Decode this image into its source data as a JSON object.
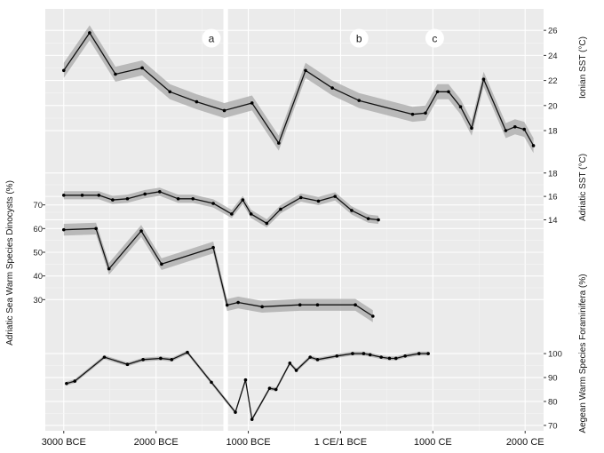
{
  "chart_data": {
    "type": "line",
    "title": "",
    "x_axis": {
      "label": "",
      "range": [
        -3200,
        2200
      ],
      "ticks": [
        {
          "value": -3000,
          "label": "3000 BCE"
        },
        {
          "value": -2000,
          "label": "2000 BCE"
        },
        {
          "value": -1000,
          "label": "1000 BCE"
        },
        {
          "value": 0,
          "label": "1 CE/1 BCE"
        },
        {
          "value": 1000,
          "label": "1000 CE"
        },
        {
          "value": 2000,
          "label": "2000 CE"
        }
      ]
    },
    "axes": {
      "ionian": {
        "label": "Ionian SST (°C)",
        "side": "right",
        "range": [
          16.3,
          27.5
        ],
        "ticks": [
          18,
          20,
          22,
          24,
          26
        ]
      },
      "adriatic_sst": {
        "label": "Adriatic SST (°C)",
        "side": "right",
        "range": [
          11,
          19.5
        ],
        "ticks": [
          14,
          16,
          18
        ]
      },
      "adriatic_dino": {
        "label": "Adriatic Sea Warm Species Dinocysts (%)",
        "side": "left",
        "range": [
          20,
          74
        ],
        "ticks": [
          30,
          40,
          50,
          60,
          70
        ]
      },
      "aegean": {
        "label": "Aegean Warm Species Foraminifera (%)",
        "side": "right",
        "range": [
          67,
          103
        ],
        "ticks": [
          70,
          80,
          90,
          100
        ]
      }
    },
    "highlight_band": {
      "from": -1270,
      "to": -1220
    },
    "phase_markers": [
      {
        "label": "a",
        "x": -1400
      },
      {
        "label": "b",
        "x": 200
      },
      {
        "label": "c",
        "x": 1020
      }
    ],
    "series": [
      {
        "name": "Ionian SST",
        "axis": "ionian",
        "band": 0.6,
        "x": [
          -3000,
          -2720,
          -2440,
          -2150,
          -1850,
          -1560,
          -1260,
          -960,
          -670,
          -380,
          -90,
          200,
          780,
          920,
          1050,
          1170,
          1300,
          1420,
          1550,
          1790,
          1890,
          1990,
          2090
        ],
        "y": [
          22.8,
          25.8,
          22.5,
          23.0,
          21.1,
          20.3,
          19.6,
          20.2,
          17.0,
          22.8,
          21.4,
          20.4,
          19.3,
          19.4,
          21.1,
          21.1,
          19.9,
          18.2,
          22.1,
          18.0,
          18.3,
          18.1,
          16.8
        ]
      },
      {
        "name": "Adriatic SST",
        "axis": "adriatic_sst",
        "band": 0.35,
        "x": [
          -3000,
          -2800,
          -2620,
          -2470,
          -2310,
          -2120,
          -1960,
          -1760,
          -1600,
          -1380,
          -1180,
          -1060,
          -970,
          -800,
          -650,
          -430,
          -240,
          -60,
          120,
          300,
          410
        ],
        "y": [
          16.1,
          16.1,
          16.1,
          15.7,
          15.8,
          16.2,
          16.4,
          15.8,
          15.8,
          15.4,
          14.5,
          15.7,
          14.5,
          13.7,
          14.9,
          15.9,
          15.6,
          16.0,
          14.8,
          14.1,
          14.0
        ]
      },
      {
        "name": "Adriatic Sea Warm Species Dinocysts",
        "axis": "adriatic_dino",
        "band": 2.5,
        "x": [
          -3000,
          -2650,
          -2510,
          -2160,
          -1940,
          -1380,
          -1230,
          -1110,
          -850,
          -440,
          -250,
          160,
          350
        ],
        "y": [
          59.5,
          60.0,
          43.0,
          59.0,
          45.0,
          52.0,
          27.7,
          28.8,
          27.0,
          27.8,
          27.8,
          27.8,
          23.0
        ]
      },
      {
        "name": "Aegean Warm Species Foraminifera",
        "axis": "aegean",
        "band": 0.8,
        "x": [
          -2970,
          -2880,
          -2560,
          -2310,
          -2140,
          -1950,
          -1830,
          -1660,
          -1400,
          -1140,
          -1030,
          -960,
          -770,
          -700,
          -550,
          -480,
          -330,
          -250,
          -40,
          130,
          250,
          320,
          440,
          530,
          600,
          700,
          850,
          950
        ],
        "y": [
          87.5,
          88.5,
          98.5,
          95.5,
          97.5,
          98.0,
          97.5,
          100.5,
          88.0,
          75.5,
          89.0,
          72.5,
          85.5,
          85.0,
          96.0,
          93.0,
          98.5,
          97.5,
          99.0,
          100.0,
          100.0,
          99.5,
          98.5,
          98.0,
          98.0,
          99.0,
          100.0,
          100.0
        ]
      }
    ]
  }
}
